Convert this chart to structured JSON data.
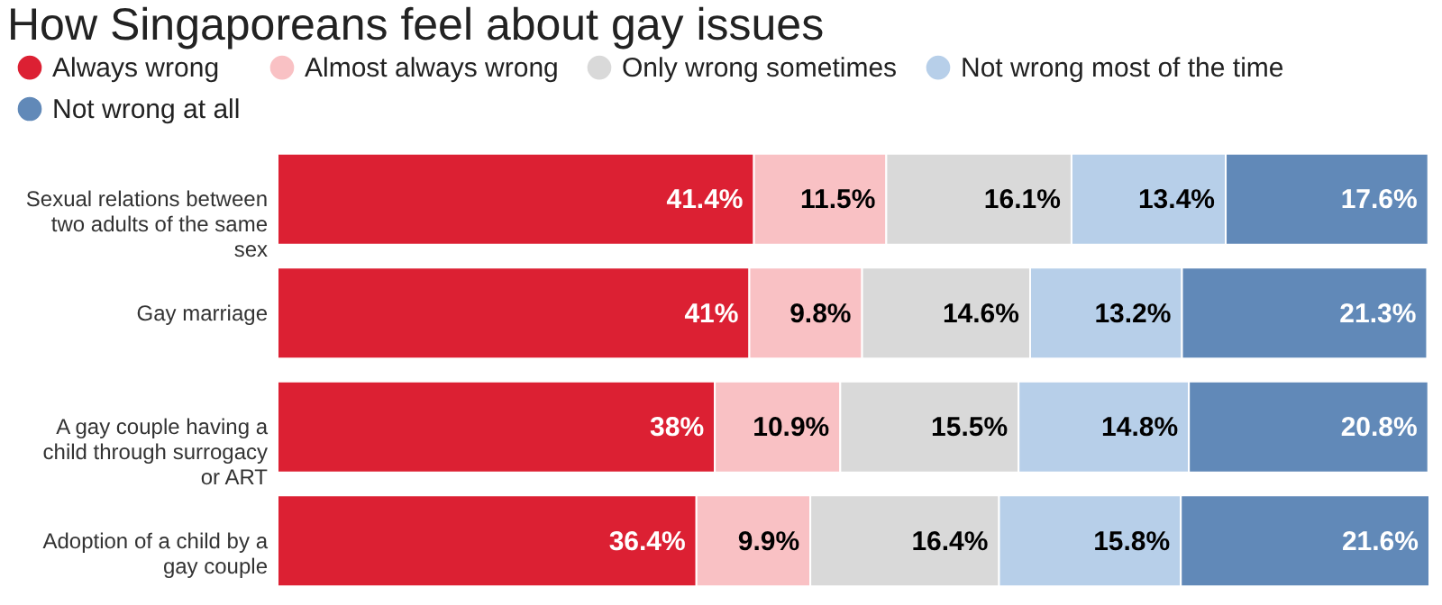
{
  "chart_data": {
    "type": "bar",
    "orientation": "horizontal",
    "stacked": true,
    "title": "How Singaporeans feel about gay issues",
    "legend": "top",
    "tick_labels": "y",
    "categories": [
      "Sexual relations between two adults of the same sex",
      "Gay marriage",
      "A gay couple having a child through surrogacy or ART",
      "Adoption of a child by a gay couple"
    ],
    "series": [
      {
        "name": "Always wrong",
        "color": "#dc2033",
        "values": [
          41.4,
          41,
          38,
          36.4
        ],
        "value_labels": [
          "41.4%",
          "41%",
          "38%",
          "36.4%"
        ]
      },
      {
        "name": "Almost always wrong",
        "color": "#f9c1c4",
        "values": [
          11.5,
          9.8,
          10.9,
          9.9
        ],
        "value_labels": [
          "11.5%",
          "9.8%",
          "10.9%",
          "9.9%"
        ]
      },
      {
        "name": "Only wrong sometimes",
        "color": "#d9d9d9",
        "values": [
          16.1,
          14.6,
          15.5,
          16.4
        ],
        "value_labels": [
          "16.1%",
          "14.6%",
          "15.5%",
          "16.4%"
        ]
      },
      {
        "name": "Not wrong most of the time",
        "color": "#b7cfe9",
        "values": [
          13.4,
          13.2,
          14.8,
          15.8
        ],
        "value_labels": [
          "13.4%",
          "13.2%",
          "14.8%",
          "15.8%"
        ]
      },
      {
        "name": "Not wrong at all",
        "color": "#6189b8",
        "values": [
          17.6,
          21.3,
          20.8,
          21.6
        ],
        "value_labels": [
          "17.6%",
          "21.3%",
          "20.8%",
          "21.6%"
        ]
      }
    ]
  }
}
